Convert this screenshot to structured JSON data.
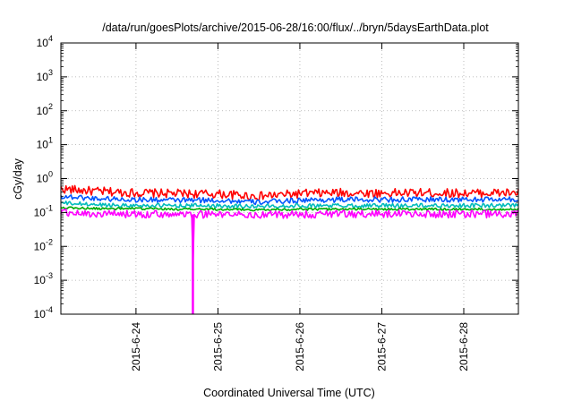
{
  "chart_data": {
    "type": "line",
    "title": "/data/run/goesPlots/archive/2015-06-28/16:00/flux/../bryn/5daysEarthData.plot",
    "xlabel": "Coordinated Universal Time (UTC)",
    "ylabel": "cGy/day",
    "yscale": "log",
    "ylim": [
      0.0001,
      10000
    ],
    "xlim": [
      "2015-06-23T02:00",
      "2015-06-28T16:00"
    ],
    "grid": true,
    "legend": "none",
    "y_ticks": [
      {
        "base": "10",
        "exp": "-4",
        "value": 0.0001
      },
      {
        "base": "10",
        "exp": "-3",
        "value": 0.001
      },
      {
        "base": "10",
        "exp": "-2",
        "value": 0.01
      },
      {
        "base": "10",
        "exp": "-1",
        "value": 0.1
      },
      {
        "base": "10",
        "exp": "0",
        "value": 1
      },
      {
        "base": "10",
        "exp": "1",
        "value": 10
      },
      {
        "base": "10",
        "exp": "2",
        "value": 100
      },
      {
        "base": "10",
        "exp": "3",
        "value": 1000
      },
      {
        "base": "10",
        "exp": "4",
        "value": 10000
      }
    ],
    "x_ticks": [
      "2015-6-24",
      "2015-6-25",
      "2015-6-26",
      "2015-6-27",
      "2015-6-28"
    ],
    "series": [
      {
        "color": "#ff0000",
        "x": [
          "2015-06-23T02:00",
          "2015-06-23T12:00",
          "2015-06-24T00:00",
          "2015-06-24T12:00",
          "2015-06-25T00:00",
          "2015-06-25T12:00",
          "2015-06-26T00:00",
          "2015-06-26T12:00",
          "2015-06-27T00:00",
          "2015-06-27T12:00",
          "2015-06-28T00:00",
          "2015-06-28T16:00"
        ],
        "y": [
          0.5,
          0.42,
          0.38,
          0.36,
          0.35,
          0.3,
          0.36,
          0.38,
          0.37,
          0.38,
          0.37,
          0.38
        ],
        "spread": 1.35
      },
      {
        "color": "#0055ff",
        "x": [
          "2015-06-23T02:00",
          "2015-06-23T12:00",
          "2015-06-24T00:00",
          "2015-06-24T12:00",
          "2015-06-25T00:00",
          "2015-06-25T12:00",
          "2015-06-26T00:00",
          "2015-06-26T12:00",
          "2015-06-27T00:00",
          "2015-06-27T12:00",
          "2015-06-28T00:00",
          "2015-06-28T16:00"
        ],
        "y": [
          0.3,
          0.26,
          0.24,
          0.23,
          0.23,
          0.2,
          0.23,
          0.24,
          0.24,
          0.24,
          0.24,
          0.24
        ],
        "spread": 1.2
      },
      {
        "color": "#00bbbb",
        "x": [
          "2015-06-23T02:00",
          "2015-06-23T12:00",
          "2015-06-24T00:00",
          "2015-06-24T12:00",
          "2015-06-25T00:00",
          "2015-06-25T12:00",
          "2015-06-26T00:00",
          "2015-06-26T12:00",
          "2015-06-27T00:00",
          "2015-06-27T12:00",
          "2015-06-28T00:00",
          "2015-06-28T16:00"
        ],
        "y": [
          0.19,
          0.17,
          0.16,
          0.16,
          0.16,
          0.15,
          0.16,
          0.16,
          0.16,
          0.16,
          0.16,
          0.16
        ],
        "spread": 1.15
      },
      {
        "color": "#00aa00",
        "x": [
          "2015-06-23T02:00",
          "2015-06-23T12:00",
          "2015-06-24T00:00",
          "2015-06-24T12:00",
          "2015-06-25T00:00",
          "2015-06-25T12:00",
          "2015-06-26T00:00",
          "2015-06-26T12:00",
          "2015-06-27T00:00",
          "2015-06-27T12:00",
          "2015-06-28T00:00",
          "2015-06-28T16:00"
        ],
        "y": [
          0.14,
          0.13,
          0.13,
          0.125,
          0.125,
          0.12,
          0.125,
          0.125,
          0.125,
          0.125,
          0.125,
          0.125
        ],
        "spread": 1.08
      },
      {
        "color": "#ff00ff",
        "x": [
          "2015-06-23T02:00",
          "2015-06-23T12:00",
          "2015-06-24T00:00",
          "2015-06-24T12:00",
          "2015-06-24T16:35",
          "2015-06-24T16:40",
          "2015-06-24T16:45",
          "2015-06-25T00:00",
          "2015-06-25T12:00",
          "2015-06-26T00:00",
          "2015-06-26T12:00",
          "2015-06-27T00:00",
          "2015-06-27T12:00",
          "2015-06-28T00:00",
          "2015-06-28T16:00"
        ],
        "y": [
          0.1,
          0.09,
          0.09,
          0.088,
          0.088,
          0.0001,
          0.088,
          0.088,
          0.085,
          0.088,
          0.09,
          0.09,
          0.09,
          0.09,
          0.09
        ],
        "spread": 1.3
      }
    ]
  }
}
